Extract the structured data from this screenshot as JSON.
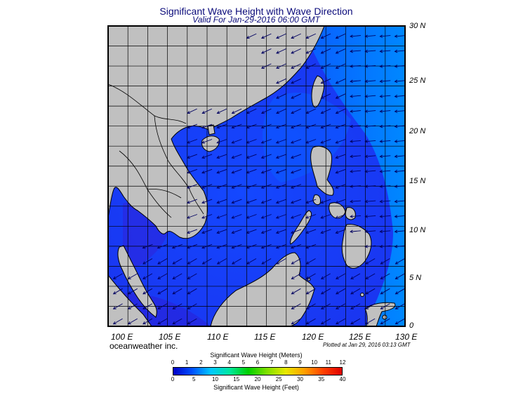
{
  "header": {
    "title": "Significant Wave Height with Wave Direction",
    "subtitle": "Valid For Jan-29-2016 06:00 GMT"
  },
  "map": {
    "extent": {
      "lon_min": 100,
      "lon_max": 130,
      "lat_min": 0,
      "lat_max": 30
    },
    "lat_labels": [
      "30 N",
      "25 N",
      "20 N",
      "15 N",
      "10 N",
      "5 N",
      "0"
    ],
    "lon_labels": [
      "100 E",
      "105 E",
      "110 E",
      "115 E",
      "120 E",
      "125 E",
      "130 E"
    ],
    "colors": {
      "land": "#c0c0c0",
      "ocean_low": "#1e2ef5",
      "ocean_mid": "#0a4fff",
      "ocean_high": "#0080ff",
      "arrow": "#000060",
      "grid": "#000000"
    },
    "wave_direction": "northeast monsoon swell, arrows pointing west-southwest"
  },
  "footer": {
    "credit": "oceanweather inc.",
    "plotted": "Plotted at Jan 29, 2016 03:13 GMT"
  },
  "colorbar": {
    "title_meters": "Significant Wave Height (Meters)",
    "title_feet": "Significant Wave Height (Feet)",
    "meter_ticks": [
      "0",
      "1",
      "2",
      "3",
      "4",
      "5",
      "6",
      "7",
      "8",
      "9",
      "10",
      "11",
      "12"
    ],
    "feet_ticks": [
      "0",
      "5",
      "10",
      "15",
      "20",
      "25",
      "30",
      "35",
      "40"
    ],
    "stops": [
      "#0000c8",
      "#0050ff",
      "#00c8ff",
      "#00e8a0",
      "#00d000",
      "#80e000",
      "#e8e800",
      "#ffa000",
      "#ff4000",
      "#e00000"
    ]
  }
}
